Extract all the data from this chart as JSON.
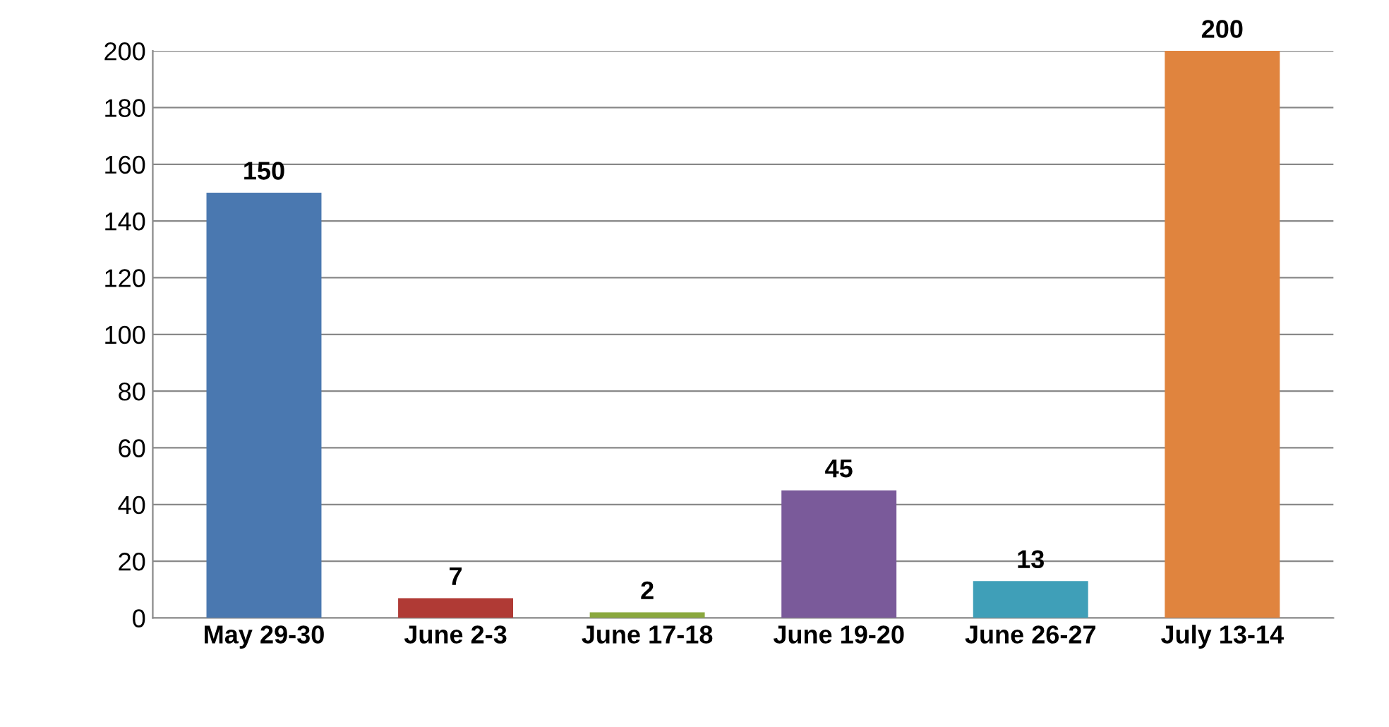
{
  "chart_data": {
    "type": "bar",
    "categories": [
      "May 29-30",
      "June 2-3",
      "June 17-18",
      "June 19-20",
      "June 26-27",
      "July 13-14"
    ],
    "values": [
      150,
      7,
      2,
      45,
      13,
      200
    ],
    "colors": [
      "#4a78b0",
      "#b03a35",
      "#8aa83e",
      "#7a5a9a",
      "#3f9fb8",
      "#e0843e"
    ],
    "ylim": [
      0,
      200
    ],
    "yticks": [
      0,
      20,
      40,
      60,
      80,
      100,
      120,
      140,
      160,
      180,
      200
    ],
    "grid": "y",
    "data_labels": true
  }
}
